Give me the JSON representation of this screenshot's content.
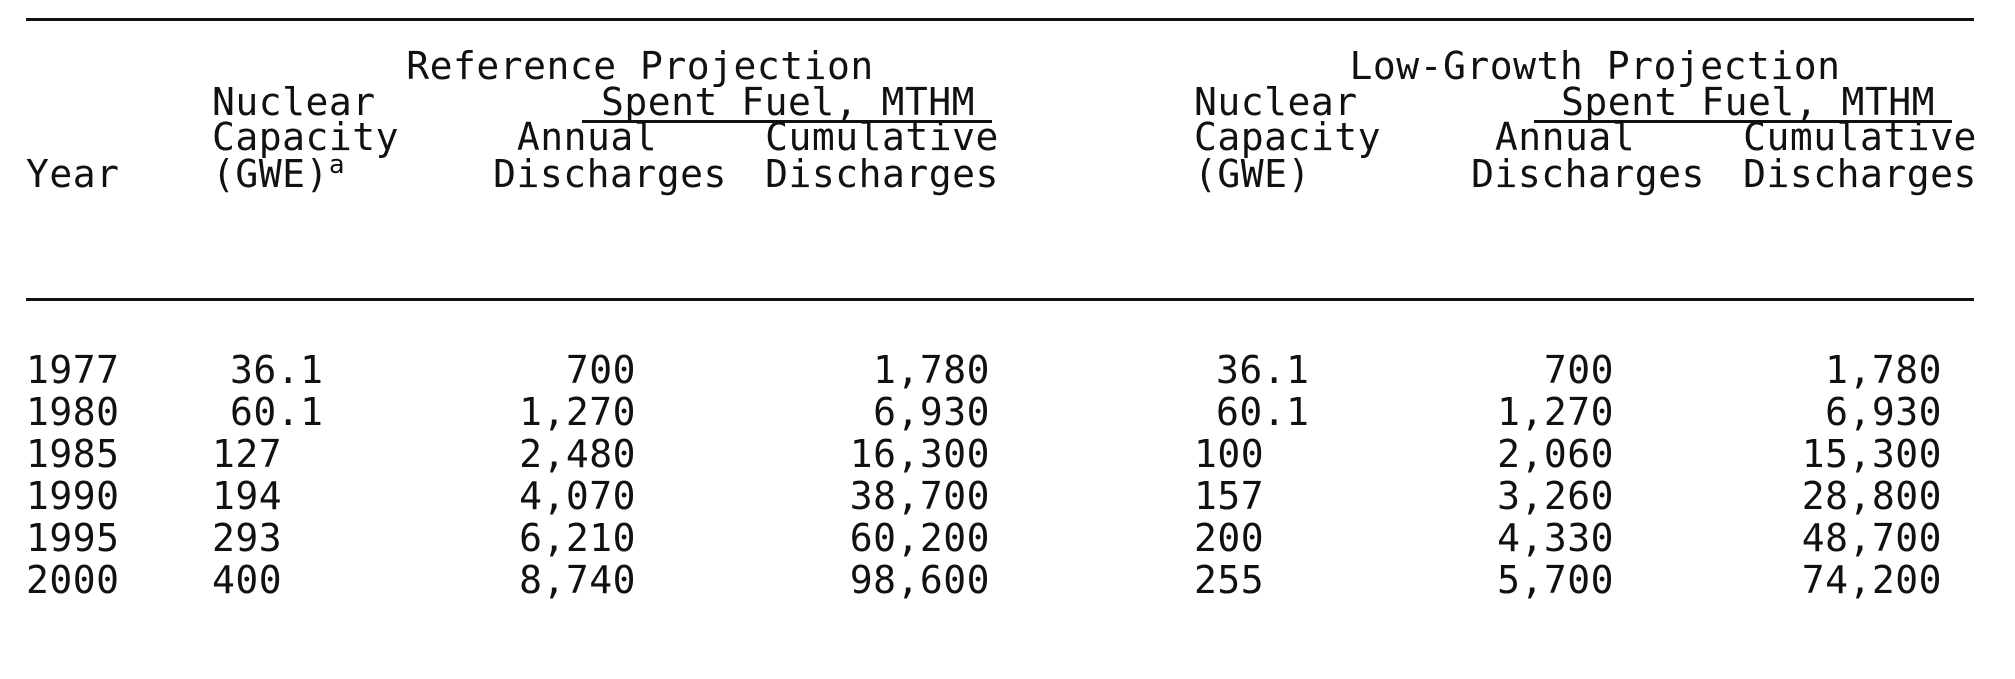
{
  "table": {
    "groups": {
      "reference": "Reference Projection",
      "low_growth": "Low-Growth Projection"
    },
    "subgroup": "Spent Fuel, MTHM",
    "headers": {
      "year": "Year",
      "nuclear_line1": "Nuclear",
      "capacity_line2": "Capacity",
      "gwe_ref": "(GWE)",
      "gwe_ref_footnote": "a",
      "gwe_low": "(GWE)",
      "annual_line1": "Annual",
      "annual_line2": "Discharges",
      "cumulative_line1": "Cumulative",
      "cumulative_line2": "Discharges"
    },
    "rows": [
      [
        "1977",
        "36.1",
        "700",
        "1,780",
        "36.1",
        "700",
        "1,780"
      ],
      [
        "1980",
        "60.1",
        "1,270",
        "6,930",
        "60.1",
        "1,270",
        "6,930"
      ],
      [
        "1985",
        "127",
        "2,480",
        "16,300",
        "100",
        "2,060",
        "15,300"
      ],
      [
        "1990",
        "194",
        "4,070",
        "38,700",
        "157",
        "3,260",
        "28,800"
      ],
      [
        "1995",
        "293",
        "6,210",
        "60,200",
        "200",
        "4,330",
        "48,700"
      ],
      [
        "2000",
        "400",
        "8,740",
        "98,600",
        "255",
        "5,700",
        "74,200"
      ]
    ]
  }
}
